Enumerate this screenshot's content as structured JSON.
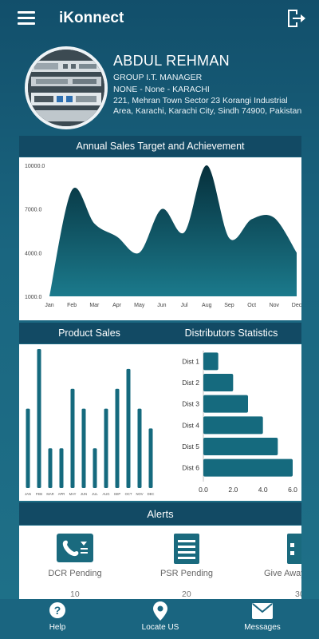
{
  "app": {
    "title": "iKonnect"
  },
  "profile": {
    "name": "ABDUL REHMAN",
    "designation": "GROUP I.T. MANAGER",
    "location": "NONE - None - KARACHI",
    "address_line1": "221, Mehran Town Sector 23 Korangi Industrial",
    "address_line2": "Area, Karachi, Karachi City, Sindh 74900, Pakistan"
  },
  "sections": {
    "annual_sales": "Annual Sales Target and Achievement",
    "product_sales": "Product Sales",
    "distributors": "Distributors Statistics",
    "alerts": "Alerts"
  },
  "chart_data": [
    {
      "type": "area",
      "title": "Annual Sales Target and Achievement",
      "categories": [
        "Jan",
        "Feb",
        "Mar",
        "Apr",
        "May",
        "Jun",
        "Jul",
        "Aug",
        "Sep",
        "Oct",
        "Nov",
        "Dec"
      ],
      "values": [
        1000,
        8300,
        6000,
        5100,
        4000,
        7000,
        5400,
        10000,
        5000,
        6300,
        6400,
        4000
      ],
      "yticks": [
        "1000.0",
        "4000.0",
        "7000.0",
        "10000.0"
      ],
      "ylim": [
        1000,
        10000
      ],
      "color": "#0f5c6e"
    },
    {
      "type": "bar",
      "title": "Product Sales",
      "categories": [
        "JAN",
        "FEB",
        "MAR",
        "APR",
        "MAY",
        "JUN",
        "JUL",
        "AUG",
        "SEP",
        "OCT",
        "NOV",
        "DEC"
      ],
      "values": [
        8,
        14,
        4,
        4,
        10,
        8,
        4,
        8,
        10,
        12,
        8,
        6
      ],
      "ylim": [
        0,
        14
      ],
      "color": "#156a7e"
    },
    {
      "type": "bar",
      "orientation": "horizontal",
      "title": "Distributors Statistics",
      "categories": [
        "Dist 1",
        "Dist 2",
        "Dist 3",
        "Dist 4",
        "Dist 5",
        "Dist 6"
      ],
      "values": [
        1,
        2,
        3,
        4,
        5,
        6
      ],
      "xticks": [
        "0.0",
        "2.0",
        "4.0",
        "6.0"
      ],
      "xlim": [
        0,
        6
      ],
      "color": "#156a7e"
    }
  ],
  "alerts": [
    {
      "label": "DCR Pending",
      "count": "10",
      "icon": "contact-phone-icon"
    },
    {
      "label": "PSR Pending",
      "count": "20",
      "icon": "document-list-icon"
    },
    {
      "label": "Give Away",
      "count": "30",
      "icon": "giveaway-icon"
    }
  ],
  "nav": {
    "help": "Help",
    "locate": "Locate US",
    "messages": "Messages"
  },
  "colors": {
    "background": "#1a6680",
    "header": "#124a64",
    "chart": "#156a7e",
    "area_top": "#062f3b"
  }
}
